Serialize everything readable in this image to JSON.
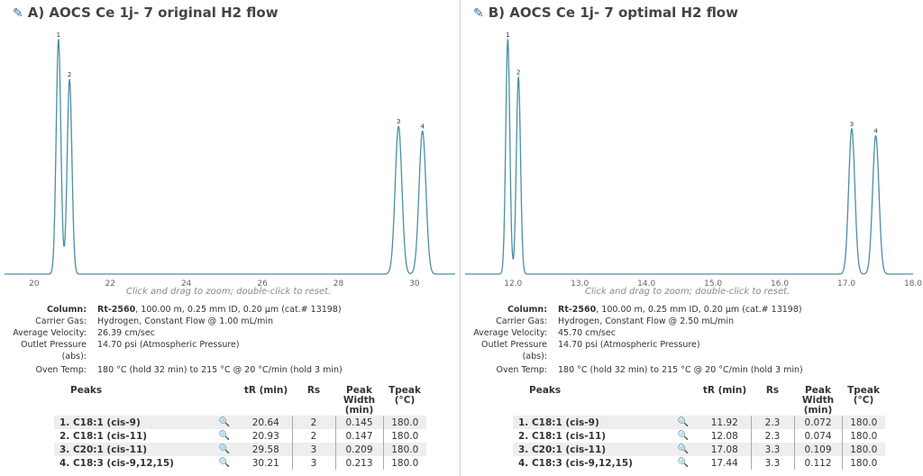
{
  "panels": [
    {
      "title": "A) AOCS Ce 1j- 7 original H2 flow",
      "hint": "Click and drag to zoom; double-click to reset.",
      "info": {
        "column_label": "Column:",
        "column_name": "Rt-2560",
        "column_value": ", 100.00 m, 0.25 mm ID, 0.20 µm (cat.# 13198)",
        "carrier_label": "Carrier Gas:",
        "carrier_value": "Hydrogen, Constant Flow @ 1.00 mL/min",
        "velocity_label": "Average Velocity:",
        "velocity_value": "26.39 cm/sec",
        "pressure_label": "Outlet Pressure (abs):",
        "pressure_value": "14.70 psi (Atmospheric Pressure)",
        "oven_label": "Oven Temp:",
        "oven_value": "180 °C (hold 32 min) to 215 °C @ 20 °C/min (hold 3 min)"
      },
      "table": {
        "headers": [
          "Peaks",
          "tR (min)",
          "Rs",
          "Peak Width (min)",
          "Tpeak (°C)"
        ],
        "rows": [
          {
            "name": "1. C18:1 (cis-9)",
            "tr": "20.64",
            "rs": "2",
            "width": "0.145",
            "tpeak": "180.0"
          },
          {
            "name": "2. C18:1 (cis-11)",
            "tr": "20.93",
            "rs": "2",
            "width": "0.147",
            "tpeak": "180.0"
          },
          {
            "name": "3. C20:1 (cis-11)",
            "tr": "29.58",
            "rs": "3",
            "width": "0.209",
            "tpeak": "180.0"
          },
          {
            "name": "4. C18:3 (cis-9,12,15)",
            "tr": "30.21",
            "rs": "3",
            "width": "0.213",
            "tpeak": "180.0"
          }
        ]
      }
    },
    {
      "title": "B) AOCS Ce 1j- 7 optimal H2 flow",
      "hint": "Click and drag to zoom; double-click to reset.",
      "info": {
        "column_label": "Column:",
        "column_name": "Rt-2560",
        "column_value": ", 100.00 m, 0.25 mm ID, 0.20 µm (cat.# 13198)",
        "carrier_label": "Carrier Gas:",
        "carrier_value": "Hydrogen, Constant Flow @ 2.50 mL/min",
        "velocity_label": "Average Velocity:",
        "velocity_value": "45.70 cm/sec",
        "pressure_label": "Outlet Pressure (abs):",
        "pressure_value": "14.70 psi (Atmospheric Pressure)",
        "oven_label": "Oven Temp:",
        "oven_value": "180 °C (hold 32 min) to 215 °C @ 20 °C/min (hold 3 min)"
      },
      "table": {
        "headers": [
          "Peaks",
          "tR (min)",
          "Rs",
          "Peak Width (min)",
          "Tpeak (°C)"
        ],
        "rows": [
          {
            "name": "1. C18:1 (cis-9)",
            "tr": "11.92",
            "rs": "2.3",
            "width": "0.072",
            "tpeak": "180.0"
          },
          {
            "name": "2. C18:1 (cis-11)",
            "tr": "12.08",
            "rs": "2.3",
            "width": "0.074",
            "tpeak": "180.0"
          },
          {
            "name": "3. C20:1 (cis-11)",
            "tr": "17.08",
            "rs": "3.3",
            "width": "0.109",
            "tpeak": "180.0"
          },
          {
            "name": "4. C18:3 (cis-9,12,15)",
            "tr": "17.44",
            "rs": "3.3",
            "width": "0.112",
            "tpeak": "180.0"
          }
        ]
      }
    }
  ],
  "chart_data": [
    {
      "type": "line",
      "title": "A) AOCS Ce 1j- 7 original H2 flow",
      "xlabel": "",
      "ylabel": "",
      "xlim": [
        19.22,
        31.07
      ],
      "xticks": [
        "20",
        "22",
        "24",
        "26",
        "28",
        "30"
      ],
      "xtick_values": [
        20,
        22,
        24,
        26,
        28,
        30
      ],
      "grid": false,
      "line_color": "#4a90a4",
      "peaks": [
        {
          "label": "1",
          "x": 20.64,
          "rel_height": 1.0,
          "width": 0.145
        },
        {
          "label": "2",
          "x": 20.93,
          "rel_height": 0.83,
          "width": 0.147
        },
        {
          "label": "3",
          "x": 29.58,
          "rel_height": 0.63,
          "width": 0.209
        },
        {
          "label": "4",
          "x": 30.21,
          "rel_height": 0.61,
          "width": 0.213
        }
      ]
    },
    {
      "type": "line",
      "title": "B) AOCS Ce 1j- 7 optimal H2 flow",
      "xlabel": "",
      "ylabel": "",
      "xlim": [
        11.28,
        18.0
      ],
      "xticks": [
        "12.0",
        "13.0",
        "14.0",
        "15.0",
        "16.0",
        "17.0",
        "18.0"
      ],
      "xtick_values": [
        12,
        13,
        14,
        15,
        16,
        17,
        18
      ],
      "grid": false,
      "line_color": "#4a90a4",
      "peaks": [
        {
          "label": "1",
          "x": 11.92,
          "rel_height": 1.0,
          "width": 0.072
        },
        {
          "label": "2",
          "x": 12.08,
          "rel_height": 0.84,
          "width": 0.074
        },
        {
          "label": "3",
          "x": 17.08,
          "rel_height": 0.62,
          "width": 0.109
        },
        {
          "label": "4",
          "x": 17.44,
          "rel_height": 0.59,
          "width": 0.112
        }
      ]
    }
  ]
}
